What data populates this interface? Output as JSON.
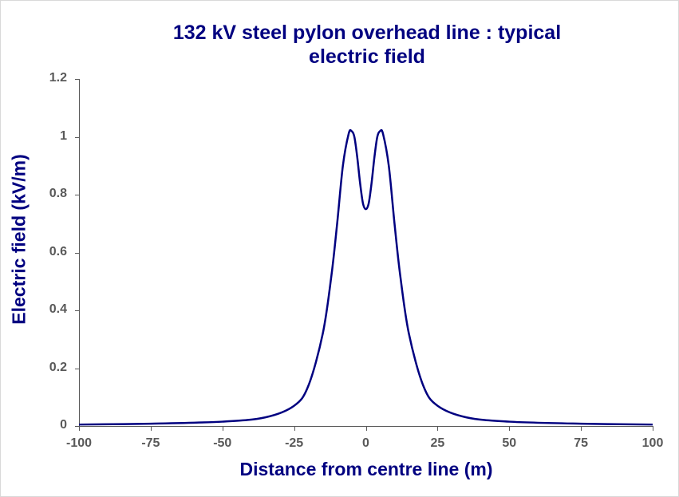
{
  "chart_data": {
    "type": "line",
    "title": "132 kV steel pylon overhead line : typical electric field",
    "title_lines": [
      "132 kV steel pylon overhead line : typical",
      "electric field"
    ],
    "xlabel": "Distance from centre line (m)",
    "ylabel": "Electric  field (kV/m)",
    "xlim": [
      -100,
      100
    ],
    "ylim": [
      0,
      1.2
    ],
    "x_ticks": [
      "-100",
      "-75",
      "-50",
      "-25",
      "0",
      "25",
      "50",
      "75",
      "100"
    ],
    "y_ticks": [
      "0",
      "0.2",
      "0.4",
      "0.6",
      "0.8",
      "1",
      "1.2"
    ],
    "grid": false,
    "legend": null,
    "series": [
      {
        "name": "Electric field",
        "color": "#000080",
        "x": [
          -100,
          -75,
          -50,
          -35,
          -25,
          -20,
          -15,
          -12,
          -10,
          -8,
          -6,
          -5,
          -4,
          -3,
          -2,
          -1,
          0,
          1,
          2,
          3,
          4,
          5,
          6,
          8,
          10,
          12,
          15,
          20,
          25,
          35,
          50,
          75,
          100
        ],
        "y": [
          0.005,
          0.008,
          0.015,
          0.03,
          0.07,
          0.14,
          0.32,
          0.52,
          0.7,
          0.9,
          1.01,
          1.02,
          1.0,
          0.93,
          0.84,
          0.77,
          0.75,
          0.77,
          0.84,
          0.93,
          1.0,
          1.02,
          1.01,
          0.9,
          0.7,
          0.52,
          0.32,
          0.14,
          0.07,
          0.03,
          0.015,
          0.008,
          0.005
        ]
      }
    ]
  }
}
